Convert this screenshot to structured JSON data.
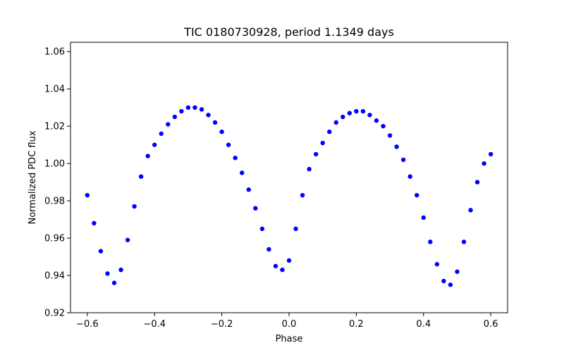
{
  "chart_data": {
    "type": "scatter",
    "title": "TIC 0180730928, period 1.1349 days",
    "xlabel": "Phase",
    "ylabel": "Normalized PDC flux",
    "xlim": [
      -0.65,
      0.65
    ],
    "ylim": [
      0.92,
      1.065
    ],
    "xticks": [
      -0.6,
      -0.4,
      -0.2,
      0.0,
      0.2,
      0.4,
      0.6
    ],
    "xtick_labels": [
      "−0.6",
      "−0.4",
      "−0.2",
      "0.0",
      "0.2",
      "0.4",
      "0.6"
    ],
    "yticks": [
      0.92,
      0.94,
      0.96,
      0.98,
      1.0,
      1.02,
      1.04,
      1.06
    ],
    "ytick_labels": [
      "0.92",
      "0.94",
      "0.96",
      "0.98",
      "1.00",
      "1.02",
      "1.04",
      "1.06"
    ],
    "marker_color": "#0000ff",
    "grid": false,
    "series": [
      {
        "x": [
          -0.6,
          -0.58,
          -0.56,
          -0.54,
          -0.52,
          -0.5,
          -0.48,
          -0.46,
          -0.44,
          -0.42,
          -0.4,
          -0.38,
          -0.36,
          -0.34,
          -0.32,
          -0.3,
          -0.28,
          -0.26,
          -0.24,
          -0.22,
          -0.2,
          -0.18,
          -0.16,
          -0.14,
          -0.12,
          -0.1,
          -0.08,
          -0.06,
          -0.04,
          -0.02,
          0.0,
          0.02,
          0.04,
          0.06,
          0.08,
          0.1,
          0.12,
          0.14,
          0.16,
          0.18,
          0.2,
          0.22,
          0.24,
          0.26,
          0.28,
          0.3,
          0.32,
          0.34,
          0.36,
          0.38,
          0.4,
          0.42,
          0.44,
          0.46,
          0.48,
          0.5,
          0.52,
          0.54,
          0.56,
          0.58,
          0.6
        ],
        "y": [
          0.983,
          0.968,
          0.953,
          0.941,
          0.936,
          0.943,
          0.959,
          0.977,
          0.993,
          1.004,
          1.01,
          1.016,
          1.021,
          1.025,
          1.028,
          1.03,
          1.03,
          1.029,
          1.026,
          1.022,
          1.017,
          1.01,
          1.003,
          0.995,
          0.986,
          0.976,
          0.965,
          0.954,
          0.945,
          0.943,
          0.948,
          0.965,
          0.983,
          0.997,
          1.005,
          1.011,
          1.017,
          1.022,
          1.025,
          1.027,
          1.028,
          1.028,
          1.026,
          1.023,
          1.02,
          1.015,
          1.009,
          1.002,
          0.993,
          0.983,
          0.971,
          0.958,
          0.946,
          0.937,
          0.935,
          0.942,
          0.958,
          0.975,
          0.99,
          1.0,
          1.005
        ]
      }
    ]
  }
}
